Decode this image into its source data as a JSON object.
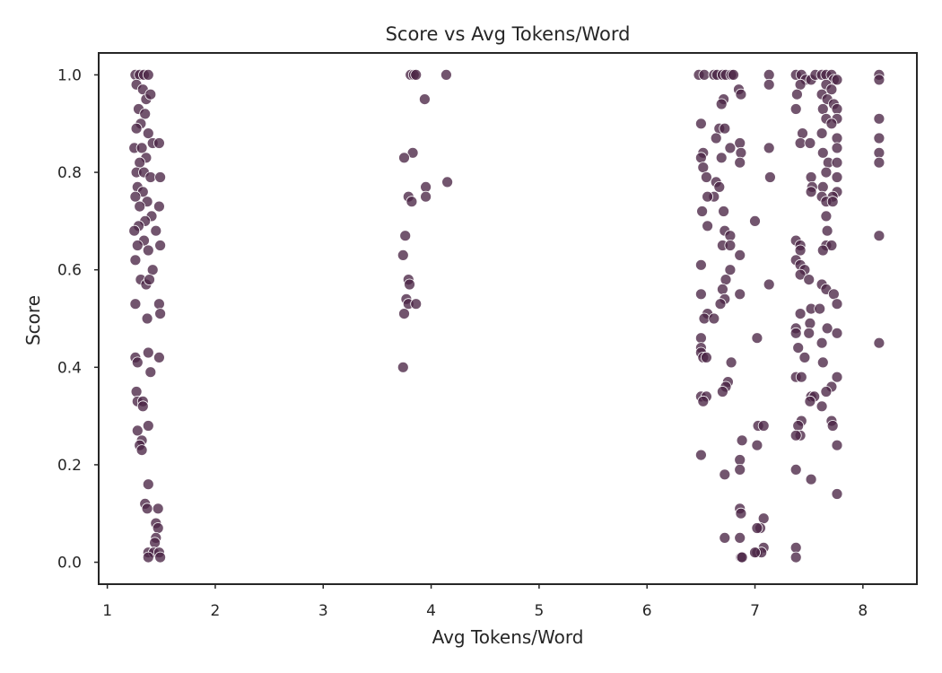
{
  "chart_data": {
    "type": "scatter",
    "title": "Score vs Avg Tokens/Word",
    "xlabel": "Avg Tokens/Word",
    "ylabel": "Score",
    "xlim": [
      0.92,
      8.5
    ],
    "ylim": [
      -0.045,
      1.045
    ],
    "xticks": [
      1,
      2,
      3,
      4,
      5,
      6,
      7,
      8
    ],
    "yticks": [
      0.0,
      0.2,
      0.4,
      0.6,
      0.8,
      1.0
    ],
    "ytick_labels": [
      "0.0",
      "0.2",
      "0.4",
      "0.6",
      "0.8",
      "1.0"
    ],
    "grid": false,
    "color": "#4a2545",
    "points": [
      [
        1.26,
        1.0
      ],
      [
        1.3,
        1.0
      ],
      [
        1.34,
        1.0
      ],
      [
        1.38,
        1.0
      ],
      [
        1.27,
        0.98
      ],
      [
        1.33,
        0.97
      ],
      [
        1.36,
        0.95
      ],
      [
        1.4,
        0.96
      ],
      [
        1.29,
        0.93
      ],
      [
        1.35,
        0.92
      ],
      [
        1.31,
        0.9
      ],
      [
        1.27,
        0.89
      ],
      [
        1.38,
        0.88
      ],
      [
        1.42,
        0.86
      ],
      [
        1.48,
        0.86
      ],
      [
        1.25,
        0.85
      ],
      [
        1.32,
        0.85
      ],
      [
        1.36,
        0.83
      ],
      [
        1.3,
        0.82
      ],
      [
        1.27,
        0.8
      ],
      [
        1.34,
        0.8
      ],
      [
        1.4,
        0.79
      ],
      [
        1.49,
        0.79
      ],
      [
        1.28,
        0.77
      ],
      [
        1.33,
        0.76
      ],
      [
        1.26,
        0.75
      ],
      [
        1.37,
        0.74
      ],
      [
        1.3,
        0.73
      ],
      [
        1.48,
        0.73
      ],
      [
        1.41,
        0.71
      ],
      [
        1.35,
        0.7
      ],
      [
        1.29,
        0.69
      ],
      [
        1.25,
        0.68
      ],
      [
        1.45,
        0.68
      ],
      [
        1.34,
        0.66
      ],
      [
        1.28,
        0.65
      ],
      [
        1.38,
        0.64
      ],
      [
        1.49,
        0.65
      ],
      [
        1.26,
        0.62
      ],
      [
        1.42,
        0.6
      ],
      [
        1.31,
        0.58
      ],
      [
        1.36,
        0.57
      ],
      [
        1.39,
        0.58
      ],
      [
        1.26,
        0.53
      ],
      [
        1.48,
        0.53
      ],
      [
        1.37,
        0.5
      ],
      [
        1.49,
        0.51
      ],
      [
        1.26,
        0.42
      ],
      [
        1.28,
        0.41
      ],
      [
        1.38,
        0.43
      ],
      [
        1.4,
        0.39
      ],
      [
        1.48,
        0.42
      ],
      [
        1.27,
        0.35
      ],
      [
        1.28,
        0.33
      ],
      [
        1.33,
        0.33
      ],
      [
        1.33,
        0.32
      ],
      [
        1.28,
        0.27
      ],
      [
        1.38,
        0.28
      ],
      [
        1.32,
        0.25
      ],
      [
        1.3,
        0.24
      ],
      [
        1.32,
        0.23
      ],
      [
        1.38,
        0.16
      ],
      [
        1.35,
        0.12
      ],
      [
        1.37,
        0.11
      ],
      [
        1.47,
        0.11
      ],
      [
        1.45,
        0.08
      ],
      [
        1.47,
        0.07
      ],
      [
        1.45,
        0.05
      ],
      [
        1.44,
        0.04
      ],
      [
        1.38,
        0.02
      ],
      [
        1.43,
        0.02
      ],
      [
        1.48,
        0.02
      ],
      [
        1.38,
        0.01
      ],
      [
        1.49,
        0.01
      ],
      [
        3.81,
        1.0
      ],
      [
        3.84,
        1.0
      ],
      [
        3.86,
        1.0
      ],
      [
        4.14,
        1.0
      ],
      [
        3.94,
        0.95
      ],
      [
        3.83,
        0.84
      ],
      [
        3.75,
        0.83
      ],
      [
        4.15,
        0.78
      ],
      [
        3.95,
        0.77
      ],
      [
        3.79,
        0.75
      ],
      [
        3.82,
        0.74
      ],
      [
        3.95,
        0.75
      ],
      [
        3.76,
        0.67
      ],
      [
        3.74,
        0.63
      ],
      [
        3.79,
        0.58
      ],
      [
        3.8,
        0.57
      ],
      [
        3.77,
        0.54
      ],
      [
        3.79,
        0.53
      ],
      [
        3.86,
        0.53
      ],
      [
        3.75,
        0.51
      ],
      [
        3.74,
        0.4
      ],
      [
        6.48,
        1.0
      ],
      [
        6.53,
        1.0
      ],
      [
        6.62,
        1.0
      ],
      [
        6.65,
        1.0
      ],
      [
        6.7,
        1.0
      ],
      [
        6.73,
        1.0
      ],
      [
        6.78,
        1.0
      ],
      [
        6.8,
        1.0
      ],
      [
        7.13,
        1.0
      ],
      [
        7.13,
        0.98
      ],
      [
        6.85,
        0.97
      ],
      [
        6.87,
        0.96
      ],
      [
        6.71,
        0.95
      ],
      [
        6.69,
        0.94
      ],
      [
        6.5,
        0.9
      ],
      [
        6.67,
        0.89
      ],
      [
        6.72,
        0.89
      ],
      [
        6.64,
        0.87
      ],
      [
        6.86,
        0.86
      ],
      [
        6.77,
        0.85
      ],
      [
        7.13,
        0.85
      ],
      [
        6.52,
        0.84
      ],
      [
        6.87,
        0.84
      ],
      [
        6.69,
        0.83
      ],
      [
        6.5,
        0.83
      ],
      [
        6.86,
        0.82
      ],
      [
        6.52,
        0.81
      ],
      [
        6.55,
        0.79
      ],
      [
        7.14,
        0.79
      ],
      [
        6.64,
        0.78
      ],
      [
        6.67,
        0.77
      ],
      [
        6.62,
        0.75
      ],
      [
        6.56,
        0.75
      ],
      [
        6.71,
        0.72
      ],
      [
        6.51,
        0.72
      ],
      [
        7.0,
        0.7
      ],
      [
        6.56,
        0.69
      ],
      [
        6.72,
        0.68
      ],
      [
        6.77,
        0.67
      ],
      [
        6.7,
        0.65
      ],
      [
        6.77,
        0.65
      ],
      [
        6.86,
        0.63
      ],
      [
        6.5,
        0.61
      ],
      [
        6.77,
        0.6
      ],
      [
        6.73,
        0.58
      ],
      [
        7.13,
        0.57
      ],
      [
        6.7,
        0.56
      ],
      [
        6.86,
        0.55
      ],
      [
        6.5,
        0.55
      ],
      [
        6.72,
        0.54
      ],
      [
        6.68,
        0.53
      ],
      [
        6.56,
        0.51
      ],
      [
        6.53,
        0.5
      ],
      [
        6.62,
        0.5
      ],
      [
        6.5,
        0.46
      ],
      [
        7.02,
        0.46
      ],
      [
        6.5,
        0.44
      ],
      [
        6.5,
        0.43
      ],
      [
        6.52,
        0.42
      ],
      [
        6.55,
        0.42
      ],
      [
        6.78,
        0.41
      ],
      [
        6.75,
        0.37
      ],
      [
        6.73,
        0.36
      ],
      [
        6.7,
        0.35
      ],
      [
        6.5,
        0.34
      ],
      [
        6.55,
        0.34
      ],
      [
        6.52,
        0.33
      ],
      [
        7.03,
        0.28
      ],
      [
        7.08,
        0.28
      ],
      [
        6.88,
        0.25
      ],
      [
        7.02,
        0.24
      ],
      [
        6.86,
        0.21
      ],
      [
        6.86,
        0.19
      ],
      [
        6.5,
        0.22
      ],
      [
        6.72,
        0.18
      ],
      [
        6.86,
        0.11
      ],
      [
        6.87,
        0.1
      ],
      [
        7.08,
        0.09
      ],
      [
        7.05,
        0.07
      ],
      [
        7.02,
        0.07
      ],
      [
        6.72,
        0.05
      ],
      [
        6.86,
        0.05
      ],
      [
        7.08,
        0.03
      ],
      [
        7.02,
        0.02
      ],
      [
        7.06,
        0.02
      ],
      [
        6.87,
        0.01
      ],
      [
        6.88,
        0.01
      ],
      [
        7.0,
        0.02
      ],
      [
        7.38,
        1.0
      ],
      [
        7.43,
        1.0
      ],
      [
        7.47,
        0.99
      ],
      [
        7.52,
        0.99
      ],
      [
        7.56,
        1.0
      ],
      [
        7.62,
        1.0
      ],
      [
        7.66,
        1.0
      ],
      [
        7.71,
        1.0
      ],
      [
        7.73,
        0.99
      ],
      [
        7.76,
        0.99
      ],
      [
        7.42,
        0.98
      ],
      [
        7.66,
        0.98
      ],
      [
        7.71,
        0.97
      ],
      [
        7.39,
        0.96
      ],
      [
        7.62,
        0.96
      ],
      [
        7.67,
        0.95
      ],
      [
        7.73,
        0.94
      ],
      [
        7.63,
        0.93
      ],
      [
        7.76,
        0.93
      ],
      [
        7.38,
        0.93
      ],
      [
        7.66,
        0.91
      ],
      [
        7.76,
        0.91
      ],
      [
        7.71,
        0.9
      ],
      [
        7.62,
        0.88
      ],
      [
        7.44,
        0.88
      ],
      [
        7.76,
        0.87
      ],
      [
        7.42,
        0.86
      ],
      [
        7.51,
        0.86
      ],
      [
        7.76,
        0.85
      ],
      [
        7.63,
        0.84
      ],
      [
        7.68,
        0.82
      ],
      [
        7.76,
        0.82
      ],
      [
        7.66,
        0.8
      ],
      [
        7.52,
        0.79
      ],
      [
        7.76,
        0.79
      ],
      [
        7.53,
        0.77
      ],
      [
        7.63,
        0.77
      ],
      [
        7.52,
        0.76
      ],
      [
        7.76,
        0.76
      ],
      [
        7.72,
        0.75
      ],
      [
        7.62,
        0.75
      ],
      [
        7.66,
        0.74
      ],
      [
        7.72,
        0.74
      ],
      [
        7.66,
        0.71
      ],
      [
        7.67,
        0.68
      ],
      [
        7.38,
        0.66
      ],
      [
        7.42,
        0.65
      ],
      [
        7.66,
        0.65
      ],
      [
        7.71,
        0.65
      ],
      [
        7.42,
        0.64
      ],
      [
        7.63,
        0.64
      ],
      [
        7.38,
        0.62
      ],
      [
        7.42,
        0.61
      ],
      [
        7.46,
        0.6
      ],
      [
        7.42,
        0.59
      ],
      [
        7.5,
        0.58
      ],
      [
        7.62,
        0.57
      ],
      [
        7.66,
        0.56
      ],
      [
        7.73,
        0.55
      ],
      [
        7.76,
        0.53
      ],
      [
        7.52,
        0.52
      ],
      [
        7.6,
        0.52
      ],
      [
        7.42,
        0.51
      ],
      [
        7.51,
        0.49
      ],
      [
        7.38,
        0.48
      ],
      [
        7.67,
        0.48
      ],
      [
        7.38,
        0.47
      ],
      [
        7.5,
        0.47
      ],
      [
        7.76,
        0.47
      ],
      [
        7.62,
        0.45
      ],
      [
        7.4,
        0.44
      ],
      [
        7.46,
        0.42
      ],
      [
        7.63,
        0.41
      ],
      [
        7.76,
        0.38
      ],
      [
        7.38,
        0.38
      ],
      [
        7.43,
        0.38
      ],
      [
        7.71,
        0.36
      ],
      [
        7.66,
        0.35
      ],
      [
        7.52,
        0.34
      ],
      [
        7.55,
        0.34
      ],
      [
        7.51,
        0.33
      ],
      [
        7.62,
        0.32
      ],
      [
        7.43,
        0.29
      ],
      [
        7.4,
        0.28
      ],
      [
        7.71,
        0.29
      ],
      [
        7.72,
        0.28
      ],
      [
        7.42,
        0.26
      ],
      [
        7.38,
        0.26
      ],
      [
        7.76,
        0.24
      ],
      [
        7.38,
        0.19
      ],
      [
        7.52,
        0.17
      ],
      [
        7.76,
        0.14
      ],
      [
        7.38,
        0.03
      ],
      [
        7.38,
        0.01
      ],
      [
        8.15,
        1.0
      ],
      [
        8.15,
        0.99
      ],
      [
        8.15,
        0.91
      ],
      [
        8.15,
        0.87
      ],
      [
        8.15,
        0.84
      ],
      [
        8.15,
        0.82
      ],
      [
        8.15,
        0.67
      ],
      [
        8.15,
        0.45
      ]
    ]
  }
}
